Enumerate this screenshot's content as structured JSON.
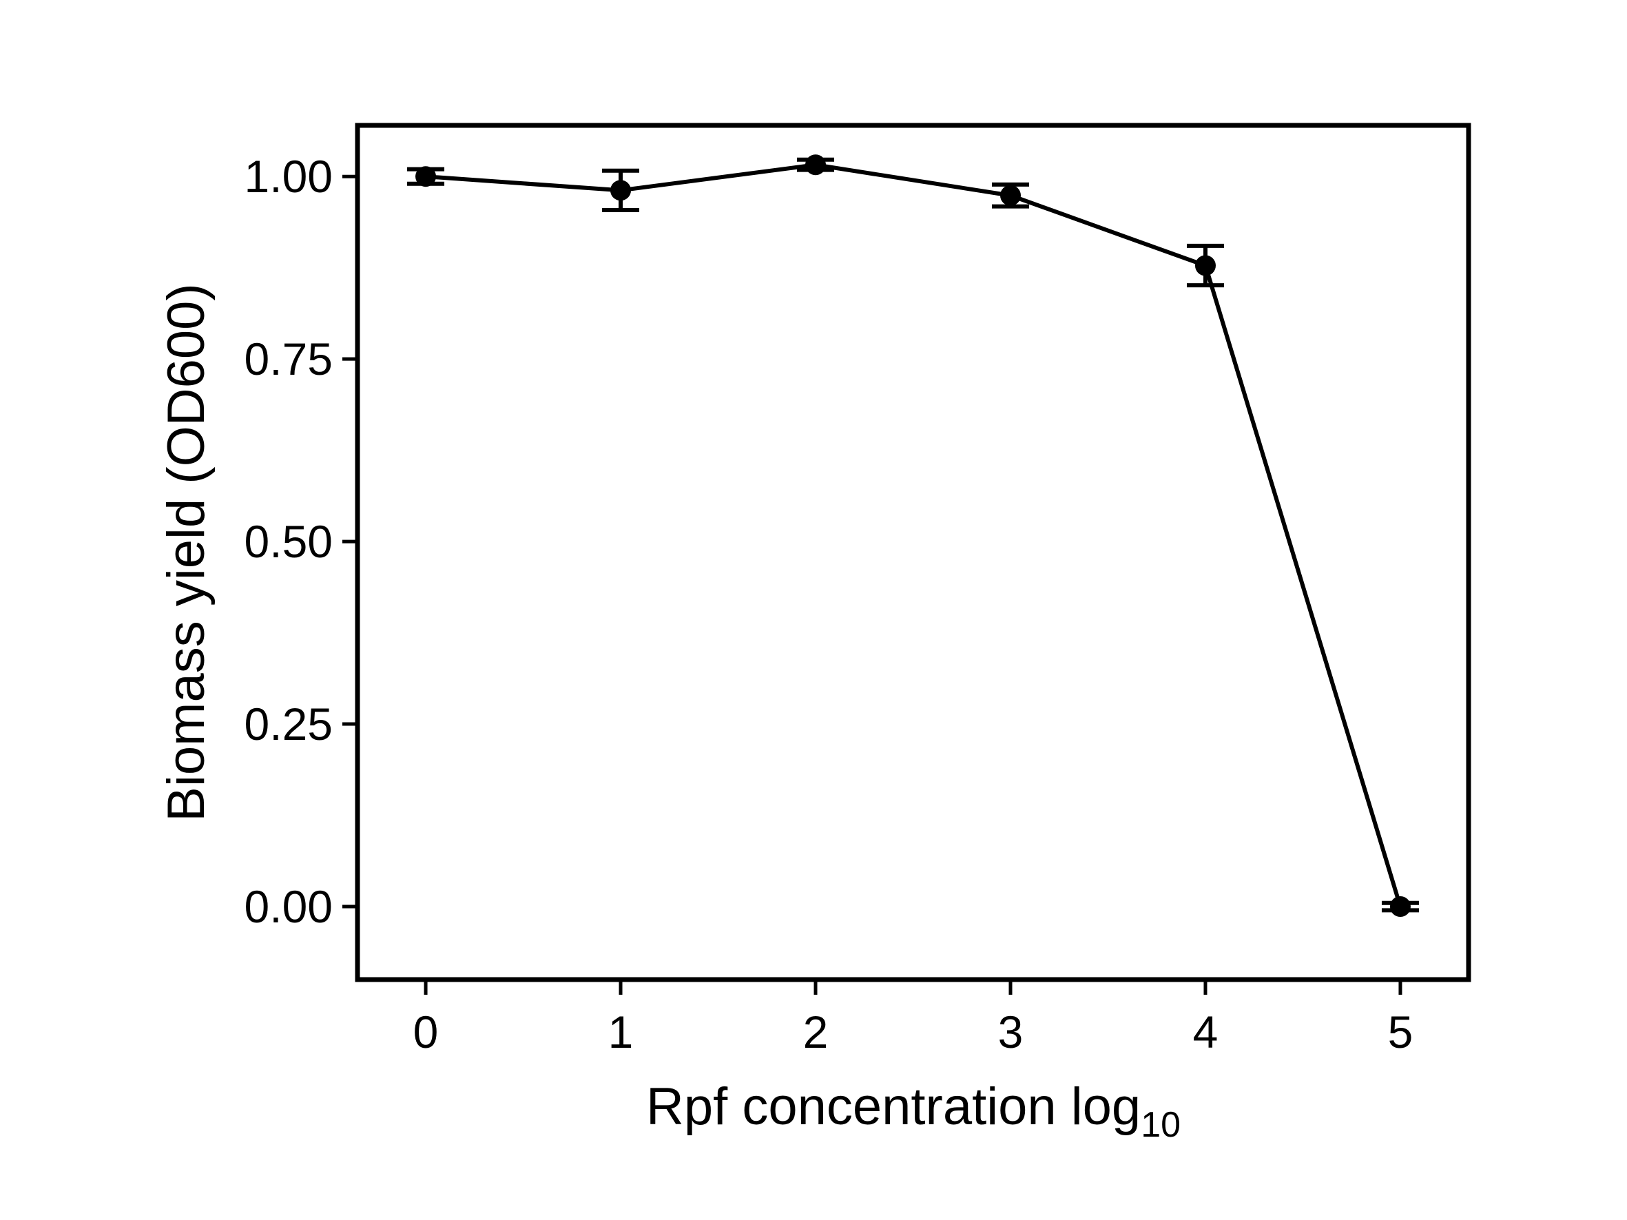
{
  "chart_data": {
    "type": "line",
    "xlabel": "Rpf concentration log",
    "xlabel_subscript": "10",
    "ylabel": "Biomass yield (OD600)",
    "xlim": [
      -0.35,
      5.35
    ],
    "ylim": [
      -0.1,
      1.07
    ],
    "x_ticks": [
      0,
      1,
      2,
      3,
      4,
      5
    ],
    "x_tick_labels": [
      "0",
      "1",
      "2",
      "3",
      "4",
      "5"
    ],
    "y_ticks": [
      0,
      0.25,
      0.5,
      0.75,
      1.0
    ],
    "y_tick_labels": [
      "0.00",
      "0.25",
      "0.50",
      "0.75",
      "1.00"
    ],
    "grid": false,
    "legend": "none",
    "line_color": "#000000",
    "series": [
      {
        "x": [
          0,
          1,
          2,
          3,
          4,
          5
        ],
        "y": [
          1.0,
          0.981,
          1.016,
          0.974,
          0.878,
          0.0
        ],
        "error": [
          0.01,
          0.027,
          0.007,
          0.015,
          0.027,
          0.005
        ]
      }
    ]
  }
}
